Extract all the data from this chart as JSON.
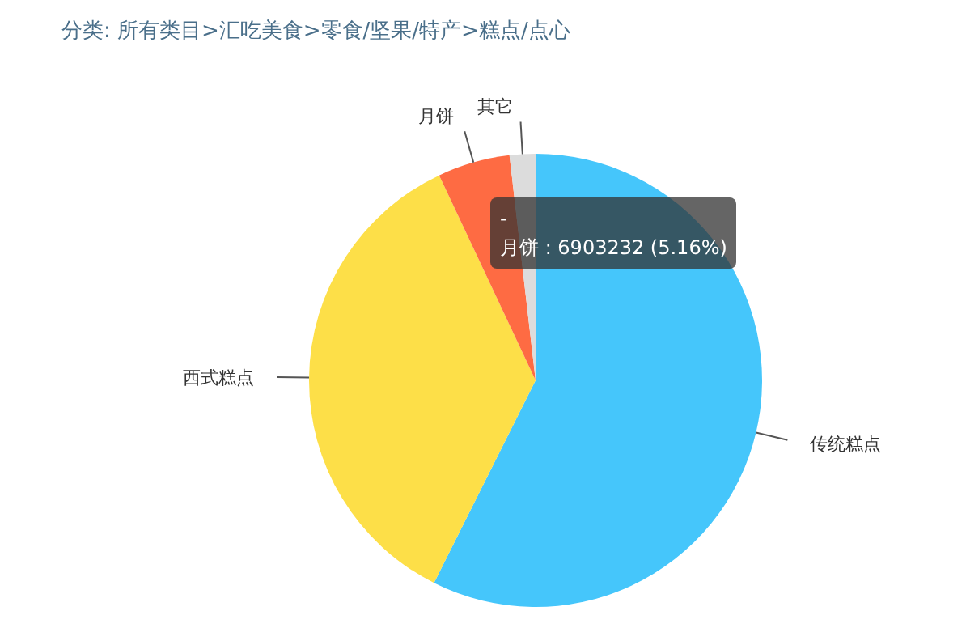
{
  "chart_data": {
    "type": "pie",
    "title": "分类: 所有类目>汇吃美食>零食/坚果/特产>糕点/点心",
    "categories": [
      "传统糕点",
      "西式糕点",
      "月饼",
      "其它"
    ],
    "values": [
      57.4,
      35.6,
      5.16,
      1.84
    ],
    "colors": [
      "#45c6fb",
      "#fddf48",
      "#fe6b43",
      "#dcdcdc"
    ],
    "annotations": [
      "-",
      "月饼 : 6903232 (5.16%)"
    ],
    "legend": false
  }
}
